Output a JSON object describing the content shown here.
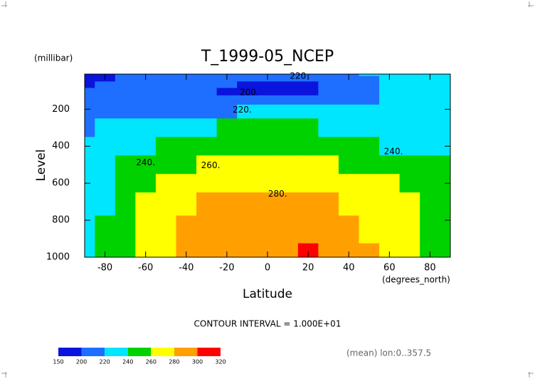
{
  "chart_data": {
    "type": "contour",
    "title": "T_1999-05_NCEP",
    "x_label": "Latitude",
    "x_units": "(degrees_north)",
    "y_label": "Level",
    "y_units": "(millibar)",
    "note": "CONTOUR INTERVAL = 1.000E+01",
    "footnote": "(mean) lon:0..357.5",
    "x": [
      -90,
      -80,
      -70,
      -60,
      -50,
      -40,
      -30,
      -20,
      -10,
      0,
      10,
      20,
      30,
      40,
      50,
      60,
      70,
      80,
      90
    ],
    "y": [
      10,
      30,
      70,
      100,
      150,
      200,
      300,
      400,
      500,
      600,
      700,
      850,
      1000
    ],
    "z": [
      [
        194,
        197,
        202,
        207,
        211,
        213,
        214,
        214,
        214,
        214,
        214,
        214,
        215,
        217,
        220,
        224,
        228,
        229,
        229
      ],
      [
        195,
        198,
        203,
        208,
        211,
        212,
        213,
        213,
        213,
        213,
        213,
        213,
        214,
        216,
        219,
        223,
        227,
        228,
        228
      ],
      [
        198,
        201,
        206,
        210,
        212,
        211,
        208,
        201,
        198,
        197,
        197,
        199,
        206,
        211,
        216,
        222,
        226,
        227,
        227
      ],
      [
        205,
        207,
        209,
        211,
        211,
        209,
        205,
        199,
        196,
        195,
        196,
        198,
        203,
        209,
        215,
        222,
        225,
        226,
        226
      ],
      [
        210,
        211,
        212,
        213,
        213,
        213,
        212,
        211,
        210,
        210,
        210,
        211,
        212,
        214,
        217,
        221,
        223,
        224,
        224
      ],
      [
        212,
        214,
        215,
        216,
        217,
        218,
        219,
        219.5,
        220,
        221,
        222,
        223,
        224,
        225,
        226,
        226,
        227,
        227,
        227
      ],
      [
        217,
        222,
        226,
        229,
        232,
        236,
        239,
        240,
        241,
        241,
        241,
        240,
        238,
        235,
        232,
        229,
        227,
        226,
        225
      ],
      [
        221,
        226,
        232,
        237,
        241,
        245,
        248,
        250,
        251,
        252,
        252,
        251,
        249,
        246,
        243,
        239,
        236,
        234,
        233
      ],
      [
        228,
        232,
        242,
        250,
        256,
        259,
        263,
        266,
        268,
        268,
        268,
        267,
        264,
        259,
        255,
        252,
        248,
        246,
        245
      ],
      [
        232,
        236,
        243,
        255,
        264,
        270,
        274,
        276,
        277,
        278,
        278,
        277,
        274,
        270,
        266,
        261,
        257,
        252,
        250
      ],
      [
        236,
        238,
        245,
        261,
        268,
        275,
        280,
        282,
        283,
        284,
        284,
        283,
        281,
        276,
        271,
        266,
        261,
        257,
        255
      ],
      [
        238,
        243,
        252,
        262,
        272,
        281,
        285,
        287,
        289,
        290,
        291,
        290,
        287,
        283,
        279,
        270,
        262,
        255,
        252
      ],
      [
        238,
        245,
        255,
        265,
        275,
        285,
        290,
        293,
        296,
        298,
        299,
        300.5,
        297,
        292,
        286,
        275,
        265,
        258,
        254
      ]
    ],
    "levels": [
      150,
      200,
      220,
      240,
      260,
      280,
      300,
      320
    ],
    "colors": [
      "#0a14dc",
      "#1e6eff",
      "#00e6ff",
      "#00d200",
      "#ffff00",
      "#ffa000",
      "#ff0000"
    ],
    "xlim": [
      -90,
      90
    ],
    "ylim": [
      10,
      1000
    ],
    "xticks": [
      -80,
      -60,
      -40,
      -20,
      0,
      20,
      40,
      60,
      80
    ],
    "yticks": [
      200,
      400,
      600,
      800,
      1000
    ],
    "annotations": [
      {
        "text": "220",
        "x": 15,
        "y": 22
      },
      {
        "text": "200.",
        "x": -9,
        "y": 110
      },
      {
        "text": "220.",
        "x": -12.5,
        "y": 205
      },
      {
        "text": "240.",
        "x": -60,
        "y": 490
      },
      {
        "text": "260.",
        "x": -28,
        "y": 505
      },
      {
        "text": "280.",
        "x": 5,
        "y": 660
      },
      {
        "text": "240.",
        "x": 62,
        "y": 430
      }
    ]
  }
}
